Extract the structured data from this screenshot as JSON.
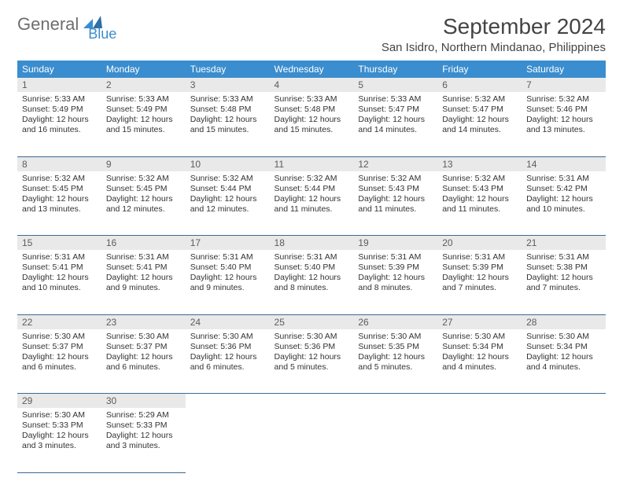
{
  "brand": {
    "part1": "General",
    "part2": "Blue"
  },
  "title": "September 2024",
  "location": "San Isidro, Northern Mindanao, Philippines",
  "colors": {
    "header_bg": "#3a8dce",
    "header_text": "#ffffff",
    "daynum_bg": "#e9e9e9",
    "border": "#3a6a94",
    "text": "#333333",
    "logo_gray": "#6e6e6e",
    "logo_blue": "#3a8dce",
    "background": "#ffffff"
  },
  "columns": [
    "Sunday",
    "Monday",
    "Tuesday",
    "Wednesday",
    "Thursday",
    "Friday",
    "Saturday"
  ],
  "weeks": [
    [
      {
        "day": "1",
        "sunrise": "5:33 AM",
        "sunset": "5:49 PM",
        "daylight": "12 hours and 16 minutes."
      },
      {
        "day": "2",
        "sunrise": "5:33 AM",
        "sunset": "5:49 PM",
        "daylight": "12 hours and 15 minutes."
      },
      {
        "day": "3",
        "sunrise": "5:33 AM",
        "sunset": "5:48 PM",
        "daylight": "12 hours and 15 minutes."
      },
      {
        "day": "4",
        "sunrise": "5:33 AM",
        "sunset": "5:48 PM",
        "daylight": "12 hours and 15 minutes."
      },
      {
        "day": "5",
        "sunrise": "5:33 AM",
        "sunset": "5:47 PM",
        "daylight": "12 hours and 14 minutes."
      },
      {
        "day": "6",
        "sunrise": "5:32 AM",
        "sunset": "5:47 PM",
        "daylight": "12 hours and 14 minutes."
      },
      {
        "day": "7",
        "sunrise": "5:32 AM",
        "sunset": "5:46 PM",
        "daylight": "12 hours and 13 minutes."
      }
    ],
    [
      {
        "day": "8",
        "sunrise": "5:32 AM",
        "sunset": "5:45 PM",
        "daylight": "12 hours and 13 minutes."
      },
      {
        "day": "9",
        "sunrise": "5:32 AM",
        "sunset": "5:45 PM",
        "daylight": "12 hours and 12 minutes."
      },
      {
        "day": "10",
        "sunrise": "5:32 AM",
        "sunset": "5:44 PM",
        "daylight": "12 hours and 12 minutes."
      },
      {
        "day": "11",
        "sunrise": "5:32 AM",
        "sunset": "5:44 PM",
        "daylight": "12 hours and 11 minutes."
      },
      {
        "day": "12",
        "sunrise": "5:32 AM",
        "sunset": "5:43 PM",
        "daylight": "12 hours and 11 minutes."
      },
      {
        "day": "13",
        "sunrise": "5:32 AM",
        "sunset": "5:43 PM",
        "daylight": "12 hours and 11 minutes."
      },
      {
        "day": "14",
        "sunrise": "5:31 AM",
        "sunset": "5:42 PM",
        "daylight": "12 hours and 10 minutes."
      }
    ],
    [
      {
        "day": "15",
        "sunrise": "5:31 AM",
        "sunset": "5:41 PM",
        "daylight": "12 hours and 10 minutes."
      },
      {
        "day": "16",
        "sunrise": "5:31 AM",
        "sunset": "5:41 PM",
        "daylight": "12 hours and 9 minutes."
      },
      {
        "day": "17",
        "sunrise": "5:31 AM",
        "sunset": "5:40 PM",
        "daylight": "12 hours and 9 minutes."
      },
      {
        "day": "18",
        "sunrise": "5:31 AM",
        "sunset": "5:40 PM",
        "daylight": "12 hours and 8 minutes."
      },
      {
        "day": "19",
        "sunrise": "5:31 AM",
        "sunset": "5:39 PM",
        "daylight": "12 hours and 8 minutes."
      },
      {
        "day": "20",
        "sunrise": "5:31 AM",
        "sunset": "5:39 PM",
        "daylight": "12 hours and 7 minutes."
      },
      {
        "day": "21",
        "sunrise": "5:31 AM",
        "sunset": "5:38 PM",
        "daylight": "12 hours and 7 minutes."
      }
    ],
    [
      {
        "day": "22",
        "sunrise": "5:30 AM",
        "sunset": "5:37 PM",
        "daylight": "12 hours and 6 minutes."
      },
      {
        "day": "23",
        "sunrise": "5:30 AM",
        "sunset": "5:37 PM",
        "daylight": "12 hours and 6 minutes."
      },
      {
        "day": "24",
        "sunrise": "5:30 AM",
        "sunset": "5:36 PM",
        "daylight": "12 hours and 6 minutes."
      },
      {
        "day": "25",
        "sunrise": "5:30 AM",
        "sunset": "5:36 PM",
        "daylight": "12 hours and 5 minutes."
      },
      {
        "day": "26",
        "sunrise": "5:30 AM",
        "sunset": "5:35 PM",
        "daylight": "12 hours and 5 minutes."
      },
      {
        "day": "27",
        "sunrise": "5:30 AM",
        "sunset": "5:34 PM",
        "daylight": "12 hours and 4 minutes."
      },
      {
        "day": "28",
        "sunrise": "5:30 AM",
        "sunset": "5:34 PM",
        "daylight": "12 hours and 4 minutes."
      }
    ],
    [
      {
        "day": "29",
        "sunrise": "5:30 AM",
        "sunset": "5:33 PM",
        "daylight": "12 hours and 3 minutes."
      },
      {
        "day": "30",
        "sunrise": "5:29 AM",
        "sunset": "5:33 PM",
        "daylight": "12 hours and 3 minutes."
      },
      null,
      null,
      null,
      null,
      null
    ]
  ],
  "labels": {
    "sunrise": "Sunrise:",
    "sunset": "Sunset:",
    "daylight": "Daylight:"
  }
}
